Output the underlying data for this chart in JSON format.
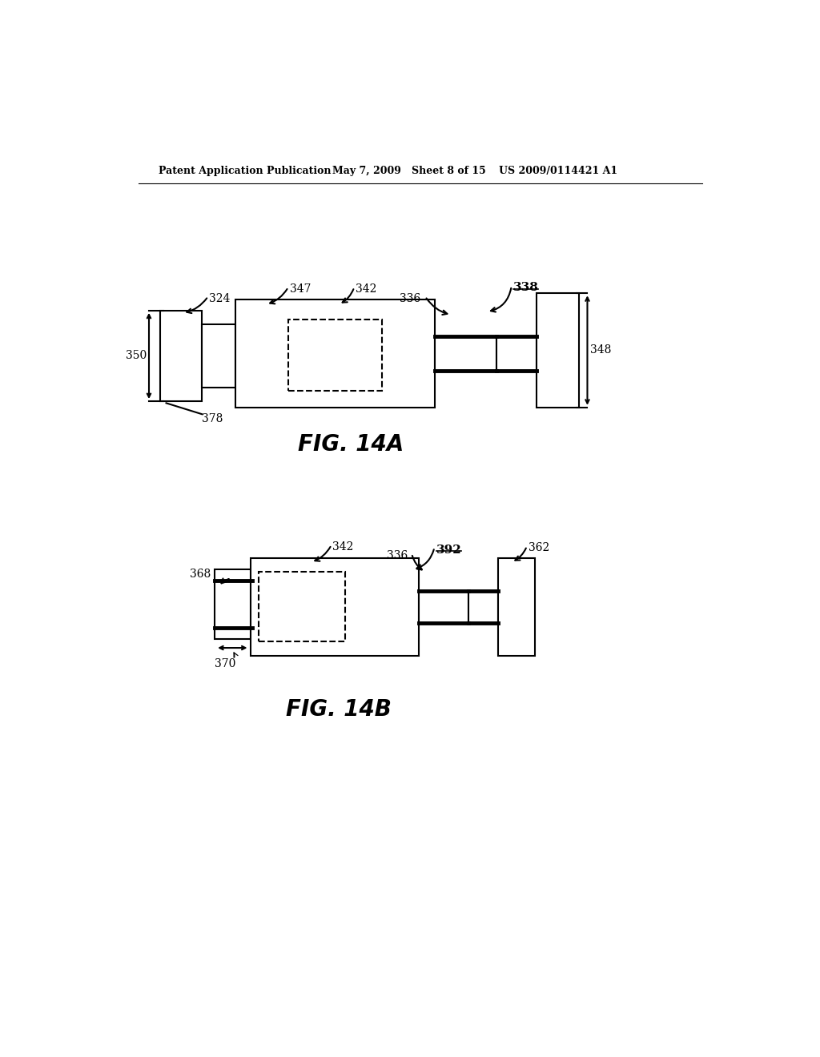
{
  "bg_color": "#ffffff",
  "header_left": "Patent Application Publication",
  "header_mid": "May 7, 2009   Sheet 8 of 15",
  "header_right": "US 2009/0114421 A1",
  "fig14a_label": "FIG. 14A",
  "fig14b_label": "FIG. 14B",
  "line_color": "#000000",
  "lw": 1.5,
  "lw_thick": 3.5
}
